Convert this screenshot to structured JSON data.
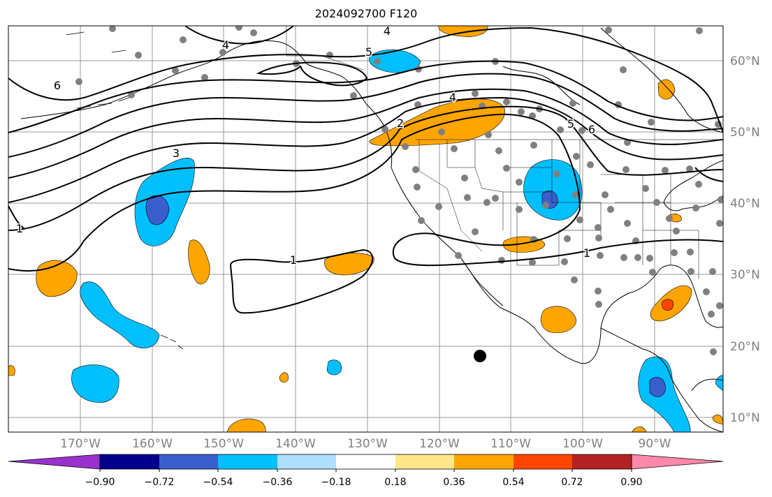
{
  "title": "2024092700 F120",
  "lon_labels": [
    "170°W",
    "160°W",
    "150°W",
    "140°W",
    "130°W",
    "120°W",
    "110°W",
    "100°W",
    "90°W"
  ],
  "lat_labels": [
    "60°N",
    "50°N",
    "40°N",
    "30°N",
    "20°N",
    "10°N"
  ],
  "colorbar": {
    "tick_labels": [
      "−0.90",
      "−0.72",
      "−0.54",
      "−0.36",
      "−0.18",
      "0.18",
      "0.36",
      "0.54",
      "0.72",
      "0.90"
    ],
    "colors": [
      "#9932CC",
      "#00008B",
      "#3A5FCD",
      "#00BFFF",
      "#B0E0FF",
      "#FFFFFF",
      "#FFE78A",
      "#FFA500",
      "#FF4500",
      "#B22222",
      "#FF88AA"
    ]
  },
  "contour_labels": [
    "4",
    "5",
    "6",
    "4",
    "2",
    "3",
    "5",
    "6",
    "1",
    "1",
    "1",
    "4"
  ],
  "colors": {
    "grid": "#999999",
    "station": "#808080",
    "contour": "#000000"
  }
}
